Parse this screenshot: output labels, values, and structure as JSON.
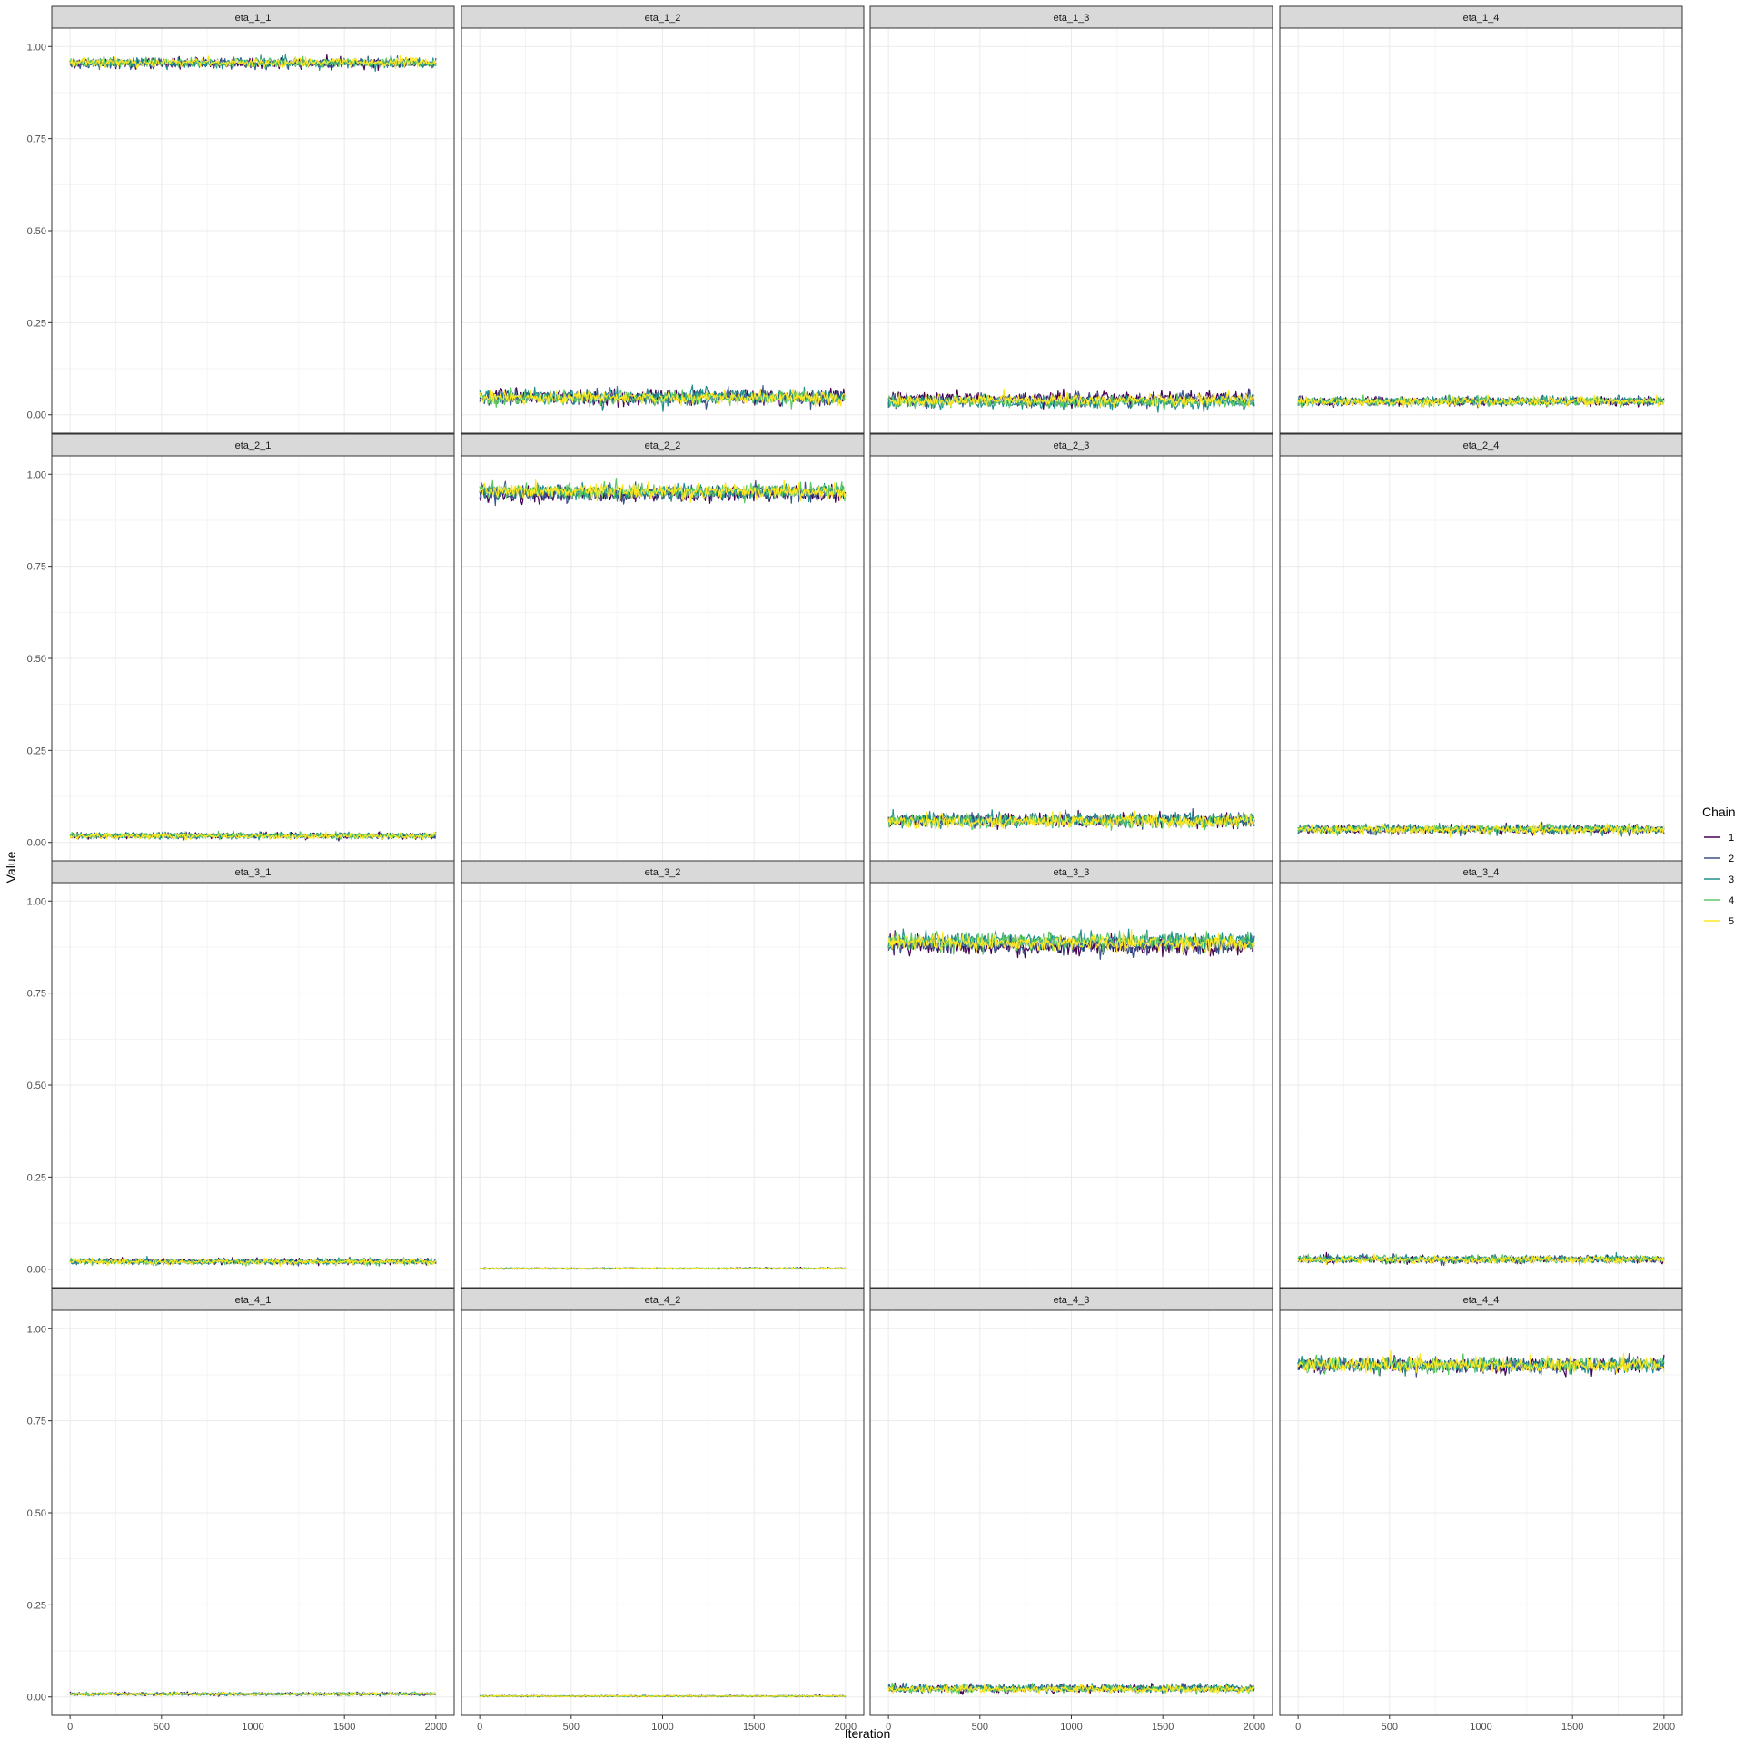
{
  "chart_data": {
    "type": "line",
    "title": "",
    "xlabel": "Iteration",
    "ylabel": "Value",
    "xlim": [
      -100,
      2100
    ],
    "ylim": [
      -0.05,
      1.05
    ],
    "x_ticks": [
      0,
      500,
      1000,
      1500,
      2000
    ],
    "x_tick_labels": [
      "0",
      "500",
      "1000",
      "1500",
      "2000"
    ],
    "y_ticks": [
      0,
      0.25,
      0.5,
      0.75,
      1.0
    ],
    "y_tick_labels": [
      "0.00",
      "0.25",
      "0.50",
      "0.75",
      "1.00"
    ],
    "grid": true,
    "legend": {
      "title": "Chain",
      "position": "right",
      "entries": [
        {
          "label": "1",
          "color": "#440154"
        },
        {
          "label": "2",
          "color": "#3b528b"
        },
        {
          "label": "3",
          "color": "#21908c"
        },
        {
          "label": "4",
          "color": "#5dc863"
        },
        {
          "label": "5",
          "color": "#fde725"
        }
      ]
    },
    "iterations": 2000,
    "panels": [
      {
        "label": "eta_1_1",
        "chains": [
          {
            "chain": "1",
            "mean": 0.955,
            "spread": 0.007
          },
          {
            "chain": "2",
            "mean": 0.955,
            "spread": 0.007
          },
          {
            "chain": "3",
            "mean": 0.956,
            "spread": 0.007
          },
          {
            "chain": "4",
            "mean": 0.956,
            "spread": 0.006
          },
          {
            "chain": "5",
            "mean": 0.957,
            "spread": 0.006
          }
        ]
      },
      {
        "label": "eta_1_2",
        "chains": [
          {
            "chain": "1",
            "mean": 0.048,
            "spread": 0.01
          },
          {
            "chain": "2",
            "mean": 0.046,
            "spread": 0.01
          },
          {
            "chain": "3",
            "mean": 0.05,
            "spread": 0.01
          },
          {
            "chain": "4",
            "mean": 0.045,
            "spread": 0.009
          },
          {
            "chain": "5",
            "mean": 0.046,
            "spread": 0.009
          }
        ]
      },
      {
        "label": "eta_1_3",
        "chains": [
          {
            "chain": "1",
            "mean": 0.045,
            "spread": 0.009
          },
          {
            "chain": "2",
            "mean": 0.04,
            "spread": 0.009
          },
          {
            "chain": "3",
            "mean": 0.033,
            "spread": 0.008
          },
          {
            "chain": "4",
            "mean": 0.036,
            "spread": 0.008
          },
          {
            "chain": "5",
            "mean": 0.04,
            "spread": 0.008
          }
        ]
      },
      {
        "label": "eta_1_4",
        "chains": [
          {
            "chain": "1",
            "mean": 0.036,
            "spread": 0.006
          },
          {
            "chain": "2",
            "mean": 0.037,
            "spread": 0.006
          },
          {
            "chain": "3",
            "mean": 0.038,
            "spread": 0.006
          },
          {
            "chain": "4",
            "mean": 0.037,
            "spread": 0.006
          },
          {
            "chain": "5",
            "mean": 0.036,
            "spread": 0.006
          }
        ]
      },
      {
        "label": "eta_2_1",
        "chains": [
          {
            "chain": "1",
            "mean": 0.018,
            "spread": 0.004
          },
          {
            "chain": "2",
            "mean": 0.018,
            "spread": 0.004
          },
          {
            "chain": "3",
            "mean": 0.019,
            "spread": 0.004
          },
          {
            "chain": "4",
            "mean": 0.018,
            "spread": 0.004
          },
          {
            "chain": "5",
            "mean": 0.017,
            "spread": 0.004
          }
        ]
      },
      {
        "label": "eta_2_2",
        "chains": [
          {
            "chain": "1",
            "mean": 0.947,
            "spread": 0.011
          },
          {
            "chain": "2",
            "mean": 0.948,
            "spread": 0.011
          },
          {
            "chain": "3",
            "mean": 0.952,
            "spread": 0.01
          },
          {
            "chain": "4",
            "mean": 0.954,
            "spread": 0.01
          },
          {
            "chain": "5",
            "mean": 0.953,
            "spread": 0.01
          }
        ]
      },
      {
        "label": "eta_2_3",
        "chains": [
          {
            "chain": "1",
            "mean": 0.06,
            "spread": 0.009
          },
          {
            "chain": "2",
            "mean": 0.059,
            "spread": 0.009
          },
          {
            "chain": "3",
            "mean": 0.062,
            "spread": 0.009
          },
          {
            "chain": "4",
            "mean": 0.058,
            "spread": 0.009
          },
          {
            "chain": "5",
            "mean": 0.057,
            "spread": 0.009
          }
        ]
      },
      {
        "label": "eta_2_4",
        "chains": [
          {
            "chain": "1",
            "mean": 0.035,
            "spread": 0.006
          },
          {
            "chain": "2",
            "mean": 0.035,
            "spread": 0.006
          },
          {
            "chain": "3",
            "mean": 0.036,
            "spread": 0.006
          },
          {
            "chain": "4",
            "mean": 0.036,
            "spread": 0.006
          },
          {
            "chain": "5",
            "mean": 0.035,
            "spread": 0.006
          }
        ]
      },
      {
        "label": "eta_3_1",
        "chains": [
          {
            "chain": "1",
            "mean": 0.021,
            "spread": 0.004
          },
          {
            "chain": "2",
            "mean": 0.021,
            "spread": 0.004
          },
          {
            "chain": "3",
            "mean": 0.02,
            "spread": 0.004
          },
          {
            "chain": "4",
            "mean": 0.02,
            "spread": 0.004
          },
          {
            "chain": "5",
            "mean": 0.02,
            "spread": 0.004
          }
        ]
      },
      {
        "label": "eta_3_2",
        "chains": [
          {
            "chain": "1",
            "mean": 0.002,
            "spread": 0.001
          },
          {
            "chain": "2",
            "mean": 0.002,
            "spread": 0.001
          },
          {
            "chain": "3",
            "mean": 0.002,
            "spread": 0.001
          },
          {
            "chain": "4",
            "mean": 0.002,
            "spread": 0.001
          },
          {
            "chain": "5",
            "mean": 0.002,
            "spread": 0.001
          }
        ]
      },
      {
        "label": "eta_3_3",
        "chains": [
          {
            "chain": "1",
            "mean": 0.878,
            "spread": 0.012
          },
          {
            "chain": "2",
            "mean": 0.88,
            "spread": 0.012
          },
          {
            "chain": "3",
            "mean": 0.893,
            "spread": 0.011
          },
          {
            "chain": "4",
            "mean": 0.89,
            "spread": 0.011
          },
          {
            "chain": "5",
            "mean": 0.886,
            "spread": 0.011
          }
        ]
      },
      {
        "label": "eta_3_4",
        "chains": [
          {
            "chain": "1",
            "mean": 0.026,
            "spread": 0.005
          },
          {
            "chain": "2",
            "mean": 0.026,
            "spread": 0.005
          },
          {
            "chain": "3",
            "mean": 0.028,
            "spread": 0.005
          },
          {
            "chain": "4",
            "mean": 0.027,
            "spread": 0.005
          },
          {
            "chain": "5",
            "mean": 0.026,
            "spread": 0.005
          }
        ]
      },
      {
        "label": "eta_4_1",
        "chains": [
          {
            "chain": "1",
            "mean": 0.008,
            "spread": 0.002
          },
          {
            "chain": "2",
            "mean": 0.008,
            "spread": 0.002
          },
          {
            "chain": "3",
            "mean": 0.008,
            "spread": 0.002
          },
          {
            "chain": "4",
            "mean": 0.008,
            "spread": 0.002
          },
          {
            "chain": "5",
            "mean": 0.008,
            "spread": 0.002
          }
        ]
      },
      {
        "label": "eta_4_2",
        "chains": [
          {
            "chain": "1",
            "mean": 0.002,
            "spread": 0.001
          },
          {
            "chain": "2",
            "mean": 0.002,
            "spread": 0.001
          },
          {
            "chain": "3",
            "mean": 0.002,
            "spread": 0.001
          },
          {
            "chain": "4",
            "mean": 0.002,
            "spread": 0.001
          },
          {
            "chain": "5",
            "mean": 0.002,
            "spread": 0.001
          }
        ]
      },
      {
        "label": "eta_4_3",
        "chains": [
          {
            "chain": "1",
            "mean": 0.022,
            "spread": 0.005
          },
          {
            "chain": "2",
            "mean": 0.023,
            "spread": 0.005
          },
          {
            "chain": "3",
            "mean": 0.024,
            "spread": 0.005
          },
          {
            "chain": "4",
            "mean": 0.021,
            "spread": 0.005
          },
          {
            "chain": "5",
            "mean": 0.021,
            "spread": 0.005
          }
        ]
      },
      {
        "label": "eta_4_4",
        "chains": [
          {
            "chain": "1",
            "mean": 0.9,
            "spread": 0.01
          },
          {
            "chain": "2",
            "mean": 0.9,
            "spread": 0.01
          },
          {
            "chain": "3",
            "mean": 0.902,
            "spread": 0.01
          },
          {
            "chain": "4",
            "mean": 0.903,
            "spread": 0.01
          },
          {
            "chain": "5",
            "mean": 0.902,
            "spread": 0.01
          }
        ]
      }
    ]
  }
}
